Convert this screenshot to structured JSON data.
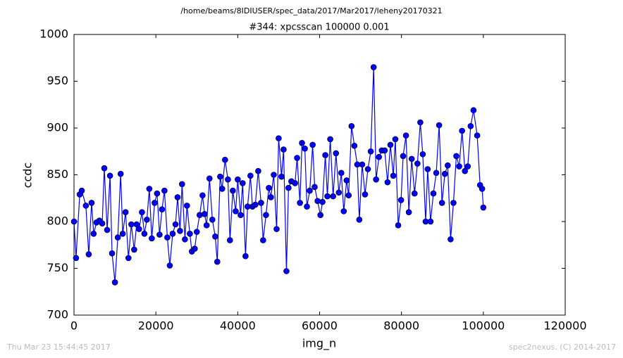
{
  "chart_data": {
    "type": "line",
    "suptitle": "/home/beams/8IDIUSER/spec_data/2017/Mar2017/leheny20170321",
    "title": "#344: xpcsscan 100000 0.001",
    "xlabel": "img_n",
    "ylabel": "ccdc",
    "footer_left": "Thu Mar 23 15:44:45 2017",
    "footer_right": "spec2nexus, (C) 2014-2017",
    "xlim": [
      0,
      120000
    ],
    "ylim": [
      700,
      1000
    ],
    "xticks": [
      0,
      20000,
      40000,
      60000,
      80000,
      100000,
      120000
    ],
    "yticks": [
      700,
      750,
      800,
      850,
      900,
      950,
      1000
    ],
    "x": [
      0,
      500,
      1400,
      1900,
      2900,
      3600,
      4300,
      4800,
      5500,
      6200,
      6900,
      7400,
      8100,
      8800,
      9300,
      10000,
      10700,
      11400,
      11900,
      12600,
      13300,
      14000,
      14700,
      15300,
      15900,
      16600,
      17200,
      17800,
      18400,
      19000,
      19700,
      20300,
      20900,
      21500,
      22100,
      22800,
      23400,
      24100,
      24800,
      25300,
      25900,
      26400,
      27100,
      27600,
      28300,
      28800,
      29500,
      30000,
      30700,
      31400,
      31900,
      32400,
      33100,
      33800,
      34500,
      35000,
      35700,
      36200,
      36900,
      37600,
      38100,
      38800,
      39500,
      40000,
      40700,
      41200,
      41900,
      42400,
      43100,
      43600,
      44300,
      45000,
      45700,
      46200,
      46900,
      47600,
      48100,
      48800,
      49500,
      50000,
      50700,
      51200,
      51900,
      52400,
      53100,
      54000,
      54500,
      55200,
      55700,
      56400,
      56900,
      57600,
      58300,
      58800,
      59500,
      60200,
      60700,
      61400,
      61900,
      62600,
      63300,
      64000,
      64700,
      65300,
      65900,
      66600,
      67100,
      67800,
      68500,
      69200,
      69700,
      70400,
      71100,
      71800,
      72500,
      73200,
      73800,
      74500,
      75200,
      75900,
      76600,
      77300,
      78000,
      78500,
      79200,
      79900,
      80400,
      81100,
      81800,
      82500,
      83200,
      83900,
      84600,
      85200,
      85900,
      86400,
      87100,
      87800,
      88500,
      89200,
      89900,
      90600,
      91300,
      92000,
      92700,
      93400,
      94100,
      94800,
      95500,
      96200,
      96900,
      97600,
      98500,
      99200,
      99700,
      100000
    ],
    "series": [
      {
        "name": "ccdc",
        "color": "#0000ff",
        "values": [
          800,
          761,
          829,
          833,
          817,
          765,
          820,
          787,
          799,
          801,
          798,
          857,
          791,
          849,
          766,
          735,
          783,
          851,
          787,
          810,
          761,
          797,
          770,
          797,
          792,
          810,
          787,
          802,
          835,
          782,
          820,
          830,
          786,
          813,
          833,
          783,
          753,
          787,
          797,
          826,
          790,
          840,
          781,
          817,
          787,
          768,
          771,
          789,
          807,
          828,
          808,
          796,
          846,
          802,
          784,
          757,
          848,
          835,
          866,
          845,
          780,
          833,
          811,
          845,
          807,
          841,
          763,
          816,
          849,
          816,
          818,
          854,
          820,
          780,
          807,
          836,
          826,
          850,
          792,
          889,
          848,
          877,
          747,
          836,
          843,
          841,
          868,
          820,
          884,
          878,
          816,
          833,
          882,
          837,
          822,
          807,
          821,
          871,
          827,
          888,
          827,
          873,
          831,
          852,
          811,
          844,
          828,
          902,
          881,
          861,
          802,
          861,
          829,
          856,
          875,
          965,
          845,
          869,
          876,
          876,
          842,
          882,
          849,
          888,
          796,
          823,
          870,
          892,
          810,
          867,
          830,
          862,
          906,
          872,
          800,
          856,
          800,
          830,
          852,
          903,
          820,
          851,
          860,
          781,
          820,
          870,
          859,
          897,
          854,
          859,
          902,
          919,
          892,
          839,
          835,
          815
        ]
      }
    ]
  }
}
